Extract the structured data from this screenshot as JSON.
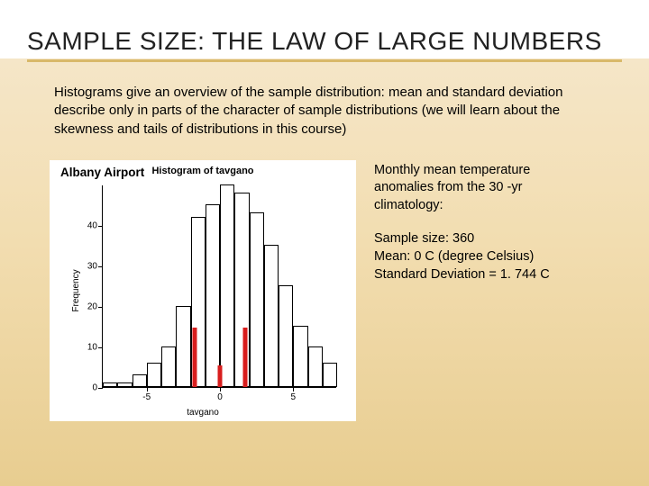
{
  "title": "SAMPLE SIZE: THE LAW OF LARGE NUMBERS",
  "bullet_glyph": "",
  "paragraph": "Histograms give an overview of the sample distribution: mean and standard deviation describe only in parts of the character of sample distributions (we will learn about the skewness and tails of distributions in this course)",
  "chart": {
    "type": "histogram",
    "location_label": "Albany Airport",
    "title": "Histogram of tavgano",
    "xlabel": "tavgano",
    "ylabel": "Frequency",
    "xlim": [
      -8,
      8
    ],
    "ylim": [
      0,
      50
    ],
    "xticks": [
      -5,
      0,
      5
    ],
    "yticks": [
      0,
      10,
      20,
      30,
      40
    ],
    "bar_width_x": 1,
    "bins_x_start": [
      -8,
      -7,
      -6,
      -5,
      -4,
      -3,
      -2,
      -1,
      0,
      1,
      2,
      3,
      4,
      5,
      6,
      7
    ],
    "frequencies": [
      1,
      1,
      3,
      6,
      10,
      20,
      42,
      45,
      50,
      48,
      43,
      35,
      25,
      15,
      10,
      6
    ],
    "bar_fill": "#ffffff",
    "bar_stroke": "#000000",
    "axis_color": "#000000",
    "background_color": "#ffffff",
    "red_markers_x": [
      -1.744,
      0,
      1.744
    ],
    "red_marker_heights": [
      22,
      8,
      22
    ],
    "red_color": "#d81e1e",
    "title_fontsize": 11,
    "label_fontsize": 10,
    "tick_fontsize": 10
  },
  "right": {
    "desc_l1": "Monthly mean temperature",
    "desc_l2": "anomalies from the 30 -yr",
    "desc_l3": "climatology:",
    "stat_l1": "Sample size: 360",
    "stat_l2": "Mean: 0 C (degree Celsius)",
    "stat_l3": "Standard Deviation = 1. 744 C"
  },
  "colors": {
    "underline": "#d9b96a",
    "bg_top": "#ffffff",
    "bg_mid": "#f2ddb0",
    "bg_bottom": "#e8cd90"
  }
}
